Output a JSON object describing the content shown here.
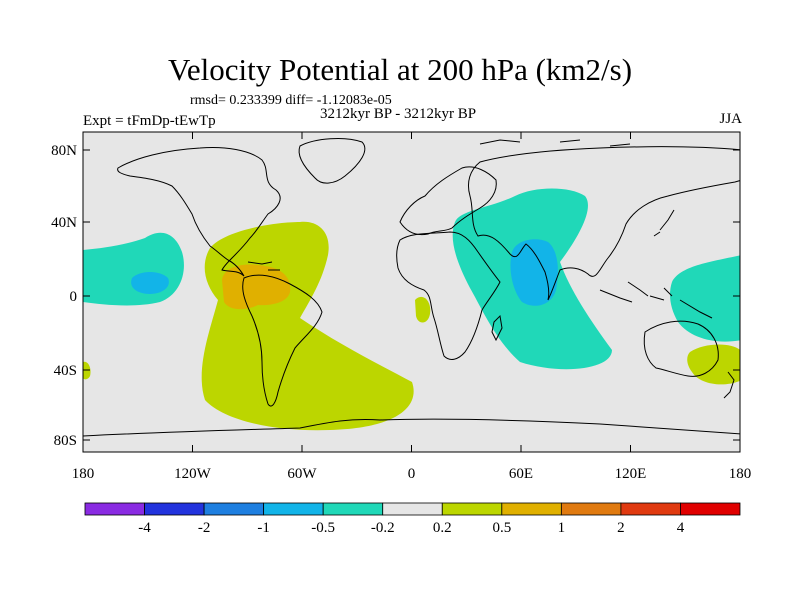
{
  "title": "Velocity Potential at 200 hPa (km2/s)",
  "stats_line": "rmsd= 0.233399 diff= -1.12083e-05",
  "subtitle": "3212kyr BP - 3212kyr BP",
  "expt_label": "Expt = tFmDp-tEwTp",
  "season": "JJA",
  "y_tick_labels": [
    "80N",
    "40N",
    "0",
    "40S",
    "80S"
  ],
  "x_tick_labels": [
    "180",
    "120W",
    "60W",
    "0",
    "60E",
    "120E",
    "180"
  ],
  "colorbar": {
    "labels": [
      "-4",
      "-2",
      "-1",
      "-0.5",
      "-0.2",
      "0.2",
      "0.5",
      "1",
      "2",
      "4"
    ],
    "colors": [
      "#8a2be2",
      "#2233dd",
      "#1e7fe0",
      "#12b4e8",
      "#20d8b8",
      "#e6e6e6",
      "#bcd600",
      "#e0b000",
      "#e07a10",
      "#e03a10",
      "#e00000"
    ]
  },
  "colors": {
    "background": "#e6e6e6",
    "coast": "#000000",
    "level_neg_weak": "#20d8b8",
    "level_neg_mid": "#12b4e8",
    "level_pos_weak": "#bcd600",
    "level_pos_mid": "#e0b000"
  }
}
